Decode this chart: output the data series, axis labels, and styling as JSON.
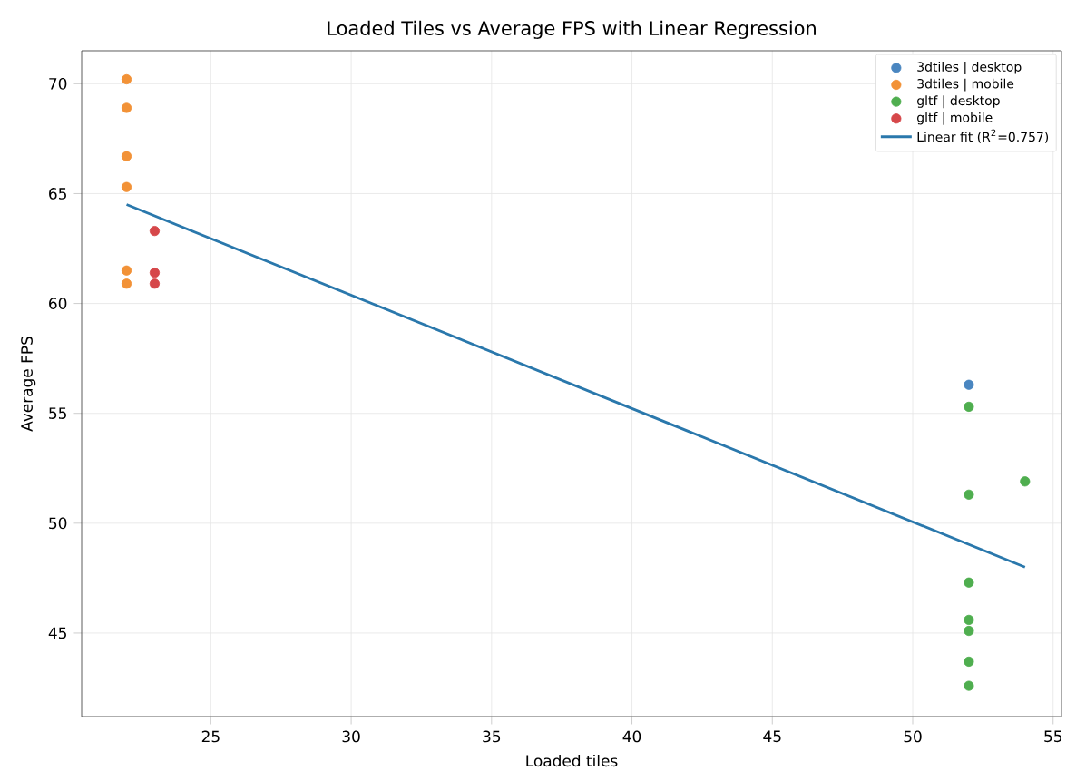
{
  "chart_data": {
    "type": "scatter",
    "title": "Loaded Tiles vs Average FPS with Linear Regression",
    "xlabel": "Loaded tiles",
    "ylabel": "Average FPS",
    "xlim": [
      20.4,
      55.3
    ],
    "ylim": [
      41.2,
      71.5
    ],
    "xticks": [
      25,
      30,
      35,
      40,
      45,
      50,
      55
    ],
    "yticks": [
      45,
      50,
      55,
      60,
      65,
      70
    ],
    "grid": true,
    "legend": "top right",
    "series": [
      {
        "name": "3dtiles | desktop",
        "color": "#4a86c0",
        "marker": "circle",
        "x": [
          52
        ],
        "values": [
          56.3
        ]
      },
      {
        "name": "3dtiles | mobile",
        "color": "#f29237",
        "marker": "circle",
        "x": [
          22,
          22,
          22,
          22,
          22,
          22
        ],
        "values": [
          70.2,
          68.9,
          66.7,
          65.3,
          61.5,
          60.9
        ]
      },
      {
        "name": "gltf | desktop",
        "color": "#4fae4f",
        "marker": "circle",
        "x": [
          52,
          52,
          52,
          52,
          52,
          52,
          52,
          54
        ],
        "values": [
          55.3,
          51.3,
          47.3,
          45.6,
          45.1,
          43.7,
          42.6,
          51.9
        ]
      },
      {
        "name": "gltf | mobile",
        "color": "#d6474a",
        "marker": "circle",
        "x": [
          23,
          23,
          23
        ],
        "values": [
          63.3,
          61.4,
          60.9
        ]
      },
      {
        "name": "Linear fit (R$^{2}$=0.757)",
        "type": "line",
        "color": "#2a78ac",
        "line_style": "solid",
        "marker": "none",
        "x": [
          22,
          54
        ],
        "values": [
          64.5,
          48.0
        ]
      }
    ]
  }
}
